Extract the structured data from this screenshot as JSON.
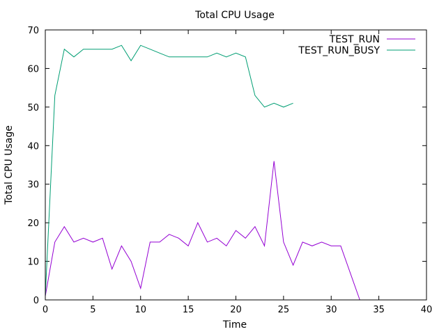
{
  "chart_data": {
    "type": "line",
    "title": "Total CPU Usage",
    "xlabel": "Time",
    "ylabel": "Total CPU Usage",
    "xlim": [
      0,
      40
    ],
    "ylim": [
      0,
      70
    ],
    "xticks": [
      0,
      5,
      10,
      15,
      20,
      25,
      30,
      35,
      40
    ],
    "yticks": [
      0,
      10,
      20,
      30,
      40,
      50,
      60,
      70
    ],
    "grid": false,
    "legend_position": "top-right",
    "series": [
      {
        "name": "TEST_RUN",
        "color": "#9400d3",
        "x": [
          0,
          1,
          2,
          3,
          4,
          5,
          6,
          7,
          8,
          9,
          10,
          11,
          12,
          13,
          14,
          15,
          16,
          17,
          18,
          19,
          20,
          21,
          22,
          23,
          24,
          25,
          26,
          27,
          28,
          29,
          30,
          31,
          32,
          33
        ],
        "y": [
          1,
          15,
          19,
          15,
          16,
          15,
          16,
          8,
          14,
          10,
          3,
          15,
          15,
          17,
          16,
          14,
          20,
          15,
          16,
          14,
          18,
          16,
          19,
          14,
          36,
          15,
          9,
          15,
          14,
          15,
          14,
          14,
          7,
          0
        ]
      },
      {
        "name": "TEST_RUN_BUSY",
        "color": "#009e73",
        "x": [
          0,
          1,
          2,
          3,
          4,
          5,
          6,
          7,
          8,
          9,
          10,
          11,
          12,
          13,
          14,
          15,
          16,
          17,
          18,
          19,
          20,
          21,
          22,
          23,
          24,
          25,
          26
        ],
        "y": [
          1,
          53,
          65,
          63,
          65,
          65,
          65,
          65,
          66,
          62,
          66,
          65,
          64,
          63,
          63,
          63,
          63,
          63,
          64,
          63,
          64,
          63,
          53,
          50,
          51,
          50,
          51
        ]
      }
    ]
  }
}
